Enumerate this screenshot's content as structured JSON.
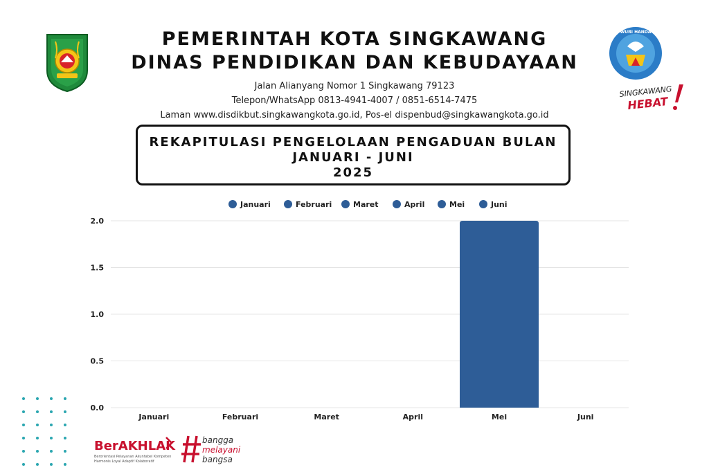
{
  "header": {
    "line1": "PEMERINTAH  KOTA SINGKAWANG",
    "line2": "DINAS PENDIDIKAN DAN KEBUDAYAAN",
    "address": "Jalan Alianyang Nomor 1 Singkawang 79123",
    "phone": "Telepon/WhatsApp 0813-4941-4007 / 0851-6514-7475",
    "web": "Laman www.disdikbut.singkawangkota.go.id, Pos-el dispenbud@singkawangkota.go.id"
  },
  "logos": {
    "left_icon": "kota-singkawang-emblem",
    "right_icon": "tut-wuri-handayani-emblem",
    "right_text": "TUT WURI HANDAYANI",
    "hebat_line1": "SINGKAWANG",
    "hebat_line2": "HEBAT",
    "berakhlak_title": "BerAKHLAK",
    "berakhlak_sub1": "Berorientasi Pelayanan Akuntabel Kompeten",
    "berakhlak_sub2": "Harmonis Loyal Adaptif Kolaboratif",
    "bangga_line1": "bangga",
    "bangga_line2": "melayani",
    "bangga_line3": "bangsa"
  },
  "title": {
    "line1": "REKAPITULASI PENGELOLAAN PENGADUAN BULAN",
    "line2": "JANUARI - JUNI",
    "line3": "2025"
  },
  "colors": {
    "bar": "#2e5d97",
    "grid": "#e4e4e4",
    "red": "#c8102e"
  },
  "chart_data": {
    "type": "bar",
    "categories": [
      "Januari",
      "Februari",
      "Maret",
      "April",
      "Mei",
      "Juni"
    ],
    "series": [
      {
        "name": "Januari",
        "values": [
          0,
          0,
          0,
          0,
          0,
          0
        ]
      },
      {
        "name": "Februari",
        "values": [
          0,
          0,
          0,
          0,
          0,
          0
        ]
      },
      {
        "name": "Maret",
        "values": [
          0,
          0,
          0,
          0,
          0,
          0
        ]
      },
      {
        "name": "April",
        "values": [
          0,
          0,
          0,
          0,
          0,
          0
        ]
      },
      {
        "name": "Mei",
        "values": [
          0,
          0,
          0,
          0,
          2,
          0
        ]
      },
      {
        "name": "Juni",
        "values": [
          0,
          0,
          0,
          0,
          0,
          0
        ]
      }
    ],
    "values": [
      0,
      0,
      0,
      0,
      2,
      0
    ],
    "yticks": [
      "0.0",
      "0.5",
      "1.0",
      "1.5",
      "2.0"
    ],
    "ylim": [
      0,
      2
    ],
    "grid": true,
    "legend": "top-center"
  }
}
